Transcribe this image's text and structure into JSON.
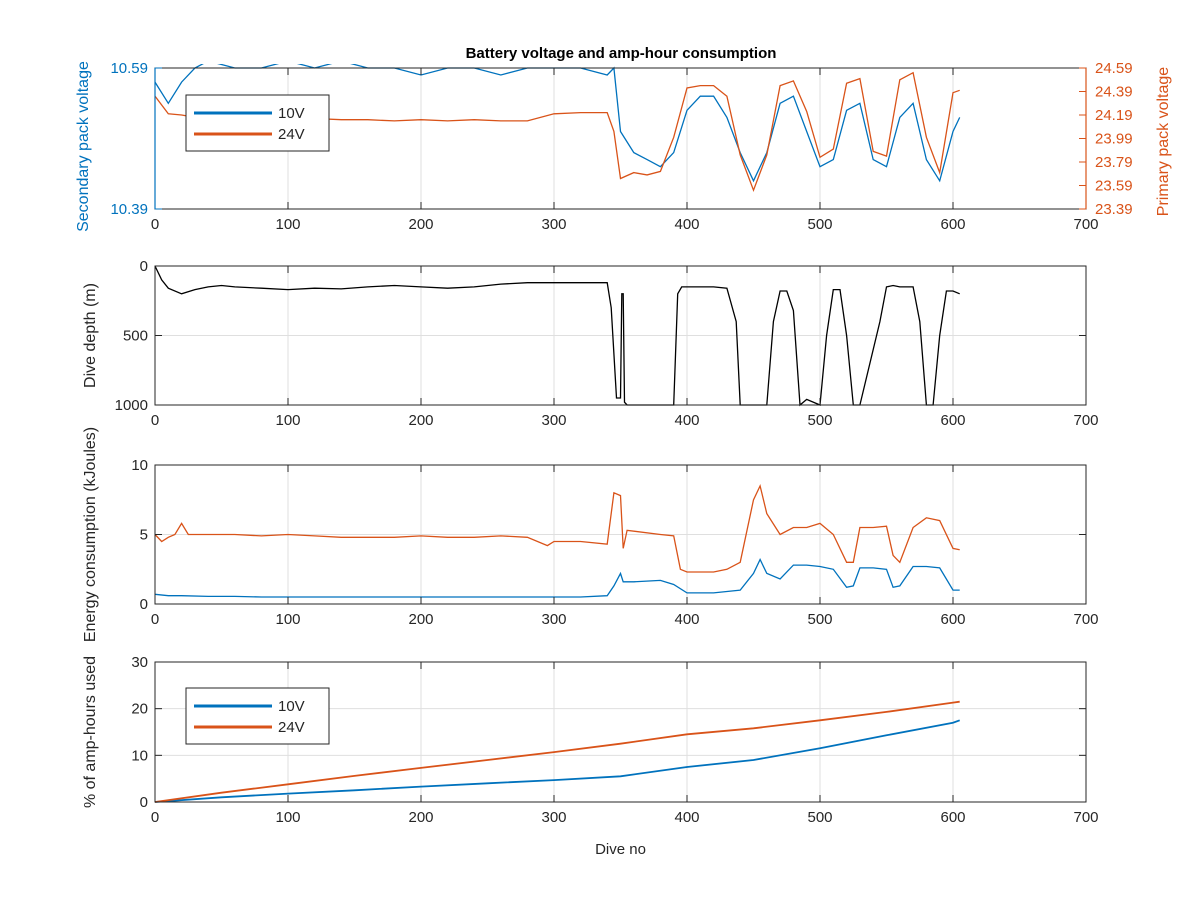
{
  "figure": {
    "title": "Battery voltage and amp-hour consumption"
  },
  "colors": {
    "series_10v": "#0072BD",
    "series_24v": "#D95319",
    "depth": "#000000",
    "axis": "#262626",
    "grid": "#DFDFDF"
  },
  "chart_data": [
    {
      "type": "line",
      "title": "Battery voltage and amp-hour consumption",
      "xlabel": "",
      "ylabel": "Secondary pack voltage",
      "y2label": "Primary pack voltage",
      "xlim": [
        0,
        700
      ],
      "ylim": [
        10.39,
        10.59
      ],
      "y2lim": [
        23.39,
        24.59
      ],
      "x_ticks": [
        "0",
        "100",
        "200",
        "300",
        "400",
        "500",
        "600",
        "700"
      ],
      "y_ticks": [
        "10.39",
        "10.59"
      ],
      "y2_ticks": [
        "23.39",
        "23.59",
        "23.79",
        "23.99",
        "24.19",
        "24.39",
        "24.59"
      ],
      "grid": true,
      "legend_position": "top-left",
      "legend": [
        "10V",
        "24V"
      ],
      "series": [
        {
          "name": "10V",
          "axis": "left",
          "x": [
            0,
            10,
            20,
            30,
            40,
            60,
            80,
            100,
            120,
            140,
            160,
            180,
            200,
            220,
            240,
            260,
            280,
            300,
            320,
            340,
            345,
            350,
            360,
            370,
            380,
            390,
            400,
            410,
            420,
            430,
            440,
            450,
            460,
            470,
            480,
            490,
            500,
            510,
            520,
            530,
            540,
            550,
            560,
            570,
            580,
            590,
            600,
            605
          ],
          "y": [
            10.57,
            10.54,
            10.57,
            10.59,
            10.6,
            10.59,
            10.59,
            10.6,
            10.59,
            10.6,
            10.59,
            10.59,
            10.58,
            10.59,
            10.59,
            10.58,
            10.59,
            10.59,
            10.59,
            10.58,
            10.59,
            10.5,
            10.47,
            10.46,
            10.45,
            10.47,
            10.53,
            10.55,
            10.55,
            10.52,
            10.47,
            10.43,
            10.47,
            10.54,
            10.55,
            10.5,
            10.45,
            10.46,
            10.53,
            10.54,
            10.46,
            10.45,
            10.52,
            10.54,
            10.46,
            10.43,
            10.5,
            10.52
          ]
        },
        {
          "name": "24V",
          "axis": "right",
          "x": [
            0,
            10,
            20,
            30,
            40,
            60,
            80,
            100,
            120,
            140,
            160,
            180,
            200,
            220,
            240,
            260,
            280,
            300,
            320,
            340,
            345,
            350,
            360,
            370,
            380,
            390,
            400,
            410,
            420,
            430,
            440,
            450,
            460,
            470,
            480,
            490,
            500,
            510,
            520,
            530,
            540,
            550,
            560,
            570,
            580,
            590,
            600,
            605
          ],
          "y": [
            24.35,
            24.2,
            24.19,
            24.17,
            24.17,
            24.15,
            24.16,
            24.14,
            24.16,
            24.15,
            24.15,
            24.14,
            24.15,
            24.14,
            24.15,
            24.14,
            24.14,
            24.2,
            24.21,
            24.21,
            24.05,
            23.65,
            23.7,
            23.68,
            23.71,
            24.0,
            24.42,
            24.44,
            24.44,
            24.35,
            23.85,
            23.55,
            23.85,
            24.44,
            24.48,
            24.22,
            23.83,
            23.9,
            24.46,
            24.5,
            23.88,
            23.84,
            24.49,
            24.55,
            24.0,
            23.7,
            24.38,
            24.4
          ]
        }
      ]
    },
    {
      "type": "line",
      "xlabel": "",
      "ylabel": "Dive depth (m)",
      "xlim": [
        0,
        700
      ],
      "ylim": [
        0,
        1000
      ],
      "y_reversed": true,
      "x_ticks": [
        "0",
        "100",
        "200",
        "300",
        "400",
        "500",
        "600",
        "700"
      ],
      "y_ticks": [
        "0",
        "500",
        "1000"
      ],
      "grid": true,
      "series": [
        {
          "x": [
            0,
            5,
            10,
            20,
            30,
            40,
            50,
            60,
            80,
            100,
            120,
            140,
            160,
            180,
            200,
            220,
            240,
            260,
            280,
            300,
            320,
            340,
            343,
            347,
            350,
            351,
            352,
            353,
            355,
            390,
            393,
            396,
            400,
            410,
            420,
            430,
            437,
            440,
            460,
            465,
            470,
            475,
            480,
            485,
            490,
            500,
            505,
            510,
            515,
            520,
            525,
            530,
            545,
            550,
            555,
            560,
            570,
            575,
            580,
            585,
            590,
            595,
            600,
            605
          ],
          "y": [
            0,
            100,
            160,
            200,
            170,
            150,
            140,
            150,
            160,
            170,
            160,
            165,
            150,
            140,
            150,
            160,
            150,
            130,
            120,
            120,
            120,
            120,
            300,
            950,
            950,
            200,
            200,
            980,
            1000,
            1000,
            200,
            150,
            150,
            150,
            150,
            160,
            400,
            1000,
            1000,
            400,
            180,
            180,
            320,
            1000,
            960,
            1000,
            500,
            170,
            170,
            500,
            1000,
            1000,
            400,
            150,
            140,
            150,
            150,
            400,
            1000,
            1000,
            500,
            180,
            180,
            200
          ]
        }
      ]
    },
    {
      "type": "line",
      "xlabel": "",
      "ylabel": "Energy consumption (kJoules)",
      "xlim": [
        0,
        700
      ],
      "ylim": [
        0,
        10
      ],
      "x_ticks": [
        "0",
        "100",
        "200",
        "300",
        "400",
        "500",
        "600",
        "700"
      ],
      "y_ticks": [
        "0",
        "5",
        "10"
      ],
      "grid": true,
      "series": [
        {
          "name": "10V",
          "x": [
            0,
            10,
            20,
            40,
            60,
            80,
            100,
            120,
            140,
            160,
            180,
            200,
            220,
            240,
            260,
            280,
            295,
            300,
            320,
            340,
            345,
            350,
            352,
            360,
            380,
            390,
            400,
            420,
            430,
            440,
            450,
            455,
            460,
            470,
            480,
            490,
            500,
            510,
            520,
            525,
            530,
            540,
            550,
            555,
            560,
            570,
            580,
            590,
            600,
            605
          ],
          "y": [
            0.7,
            0.6,
            0.6,
            0.55,
            0.55,
            0.5,
            0.5,
            0.5,
            0.5,
            0.5,
            0.5,
            0.5,
            0.5,
            0.5,
            0.5,
            0.5,
            0.5,
            0.5,
            0.5,
            0.6,
            1.3,
            2.2,
            1.6,
            1.6,
            1.7,
            1.4,
            0.8,
            0.8,
            0.9,
            1.0,
            2.2,
            3.2,
            2.2,
            1.8,
            2.8,
            2.8,
            2.7,
            2.5,
            1.2,
            1.3,
            2.6,
            2.6,
            2.5,
            1.2,
            1.3,
            2.7,
            2.7,
            2.6,
            1.0,
            1.0
          ]
        },
        {
          "name": "24V",
          "x": [
            0,
            5,
            10,
            15,
            20,
            25,
            40,
            60,
            80,
            100,
            120,
            140,
            160,
            180,
            200,
            220,
            240,
            260,
            280,
            295,
            300,
            320,
            340,
            345,
            350,
            352,
            355,
            380,
            390,
            395,
            400,
            420,
            430,
            440,
            450,
            455,
            460,
            470,
            480,
            490,
            500,
            510,
            520,
            525,
            530,
            540,
            550,
            555,
            560,
            570,
            580,
            590,
            600,
            605
          ],
          "y": [
            5.0,
            4.5,
            4.8,
            5.0,
            5.8,
            5.0,
            5.0,
            5.0,
            4.9,
            5.0,
            4.9,
            4.8,
            4.8,
            4.8,
            4.9,
            4.8,
            4.8,
            4.9,
            4.8,
            4.2,
            4.5,
            4.5,
            4.3,
            8.0,
            7.8,
            4.0,
            5.3,
            5.0,
            4.9,
            2.5,
            2.3,
            2.3,
            2.5,
            3.0,
            7.5,
            8.5,
            6.5,
            5.0,
            5.5,
            5.5,
            5.8,
            5.0,
            3.0,
            3.0,
            5.5,
            5.5,
            5.6,
            3.5,
            3.0,
            5.5,
            6.2,
            6.0,
            4.0,
            3.9
          ]
        }
      ]
    },
    {
      "type": "line",
      "xlabel": "Dive no",
      "ylabel": "% of amp-hours used",
      "xlim": [
        0,
        700
      ],
      "ylim": [
        0,
        30
      ],
      "x_ticks": [
        "0",
        "100",
        "200",
        "300",
        "400",
        "500",
        "600",
        "700"
      ],
      "y_ticks": [
        "0",
        "10",
        "20",
        "30"
      ],
      "grid": true,
      "legend_position": "top-left",
      "legend": [
        "10V",
        "24V"
      ],
      "series": [
        {
          "name": "10V",
          "x": [
            0,
            50,
            100,
            150,
            200,
            250,
            300,
            350,
            400,
            450,
            500,
            550,
            600,
            605
          ],
          "y": [
            0,
            1.0,
            1.8,
            2.5,
            3.3,
            4.0,
            4.7,
            5.5,
            7.5,
            9.0,
            11.5,
            14.3,
            17.0,
            17.5
          ]
        },
        {
          "name": "24V",
          "x": [
            0,
            50,
            100,
            150,
            200,
            250,
            300,
            350,
            400,
            450,
            500,
            550,
            600,
            605
          ],
          "y": [
            0,
            2.0,
            3.8,
            5.6,
            7.3,
            9.0,
            10.7,
            12.5,
            14.5,
            15.8,
            17.5,
            19.3,
            21.3,
            21.5
          ]
        }
      ]
    }
  ]
}
